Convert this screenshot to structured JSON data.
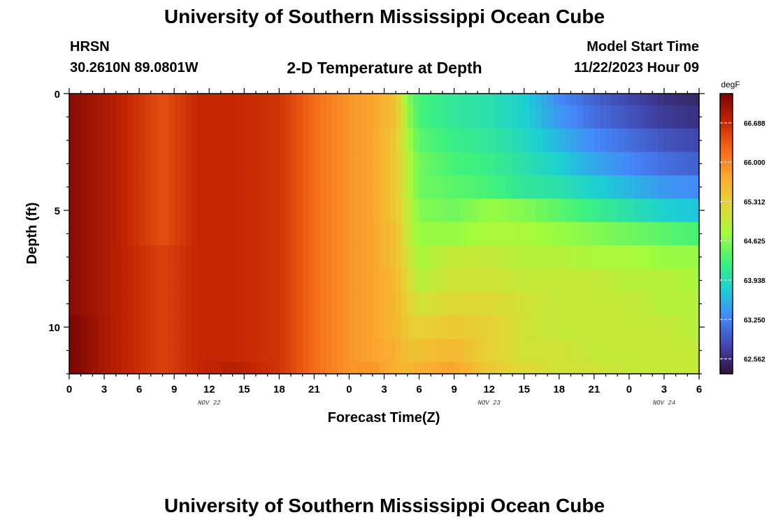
{
  "page": {
    "title": "University of Southern Mississippi Ocean Cube",
    "station": "HRSN",
    "coords": "30.2610N  89.0801W",
    "plot_title": "2-D Temperature at Depth",
    "model_label": "Model Start Time",
    "model_time": "11/22/2023 Hour 09",
    "footer_title": "University of Southern Mississippi Ocean Cube"
  },
  "chart_data": {
    "type": "heatmap",
    "title": "2-D Temperature at Depth",
    "xlabel": "Forecast Time(Z)",
    "ylabel": "Depth (ft)",
    "x_ticks": [
      "0",
      "3",
      "6",
      "9",
      "12",
      "15",
      "18",
      "21",
      "0",
      "3",
      "6",
      "9",
      "12",
      "15",
      "18",
      "21",
      "0",
      "3",
      "6"
    ],
    "x_range_hours": [
      0,
      54
    ],
    "day_labels": [
      {
        "text": "NOV 22",
        "hour": 12
      },
      {
        "text": "NOV 23",
        "hour": 36
      },
      {
        "text": "NOV 24",
        "hour": 51
      }
    ],
    "y_ticks": [
      "0",
      "5",
      "10"
    ],
    "y_range_ft": [
      0,
      12
    ],
    "colorbar": {
      "unit": "degF",
      "min": 62.3,
      "max": 67.2,
      "ticks": [
        "66.688",
        "66.000",
        "65.312",
        "64.625",
        "63.938",
        "63.250",
        "62.562"
      ],
      "colors": [
        "#30123b",
        "#4146ac",
        "#4686fb",
        "#1bcfd4",
        "#3ef17d",
        "#a2fc3c",
        "#e3d636",
        "#fbad30",
        "#f56918",
        "#c42503",
        "#7a0403"
      ]
    },
    "depth_levels_ft": [
      0,
      1,
      2,
      3,
      4,
      5,
      6,
      7,
      8,
      9,
      10,
      11,
      12
    ],
    "time_keyframes_hours": [
      0,
      4,
      8,
      11,
      14,
      18,
      21,
      24,
      26,
      28,
      29,
      30,
      33,
      36,
      39,
      42,
      45,
      48,
      51,
      54
    ],
    "temperature_degF_by_depth": [
      [
        67.1,
        66.8,
        66.4,
        66.7,
        66.7,
        66.6,
        66.2,
        65.9,
        65.8,
        65.5,
        64.6,
        64.3,
        64.1,
        64.0,
        63.8,
        63.3,
        63.0,
        62.8,
        62.6,
        62.5
      ],
      [
        67.1,
        66.8,
        66.4,
        66.7,
        66.7,
        66.6,
        66.2,
        65.9,
        65.8,
        65.5,
        64.7,
        64.3,
        64.1,
        64.0,
        63.8,
        63.4,
        63.1,
        62.9,
        62.7,
        62.6
      ],
      [
        67.1,
        66.8,
        66.4,
        66.7,
        66.7,
        66.6,
        66.2,
        65.9,
        65.8,
        65.4,
        64.8,
        64.4,
        64.2,
        64.1,
        63.9,
        63.6,
        63.3,
        63.1,
        62.9,
        62.8
      ],
      [
        67.1,
        66.8,
        66.4,
        66.7,
        66.7,
        66.6,
        66.2,
        65.9,
        65.8,
        65.4,
        64.9,
        64.5,
        64.3,
        64.2,
        64.0,
        63.8,
        63.5,
        63.3,
        63.1,
        63.0
      ],
      [
        67.1,
        66.8,
        66.4,
        66.7,
        66.7,
        66.6,
        66.2,
        65.9,
        65.8,
        65.4,
        64.9,
        64.5,
        64.4,
        64.3,
        64.1,
        64.0,
        63.8,
        63.6,
        63.4,
        63.3
      ],
      [
        67.1,
        66.8,
        66.4,
        66.7,
        66.7,
        66.6,
        66.2,
        65.9,
        65.8,
        65.4,
        65.0,
        64.6,
        64.5,
        64.7,
        64.6,
        64.4,
        64.2,
        64.0,
        63.8,
        63.7
      ],
      [
        67.1,
        66.8,
        66.4,
        66.7,
        66.7,
        66.6,
        66.2,
        65.9,
        65.8,
        65.5,
        65.0,
        64.7,
        64.7,
        64.8,
        64.8,
        64.7,
        64.6,
        64.5,
        64.4,
        64.3
      ],
      [
        67.1,
        66.8,
        66.5,
        66.7,
        66.7,
        66.6,
        66.2,
        65.9,
        65.8,
        65.5,
        65.1,
        64.8,
        65.0,
        65.0,
        64.9,
        64.9,
        64.8,
        64.8,
        64.7,
        64.7
      ],
      [
        67.1,
        66.8,
        66.5,
        66.7,
        66.7,
        66.6,
        66.2,
        65.9,
        65.8,
        65.6,
        65.2,
        64.9,
        65.1,
        65.1,
        65.0,
        65.0,
        65.0,
        64.9,
        64.9,
        64.8
      ],
      [
        67.1,
        66.8,
        66.5,
        66.7,
        66.7,
        66.6,
        66.2,
        65.9,
        65.8,
        65.6,
        65.3,
        65.1,
        65.2,
        65.2,
        65.1,
        65.0,
        65.0,
        65.0,
        64.9,
        64.9
      ],
      [
        67.2,
        66.8,
        66.5,
        66.7,
        66.7,
        66.6,
        66.2,
        65.9,
        65.8,
        65.6,
        65.4,
        65.3,
        65.4,
        65.3,
        65.1,
        65.0,
        65.0,
        65.0,
        65.0,
        64.9
      ],
      [
        67.2,
        66.8,
        66.5,
        66.7,
        66.7,
        66.6,
        66.2,
        65.9,
        65.8,
        65.7,
        65.5,
        65.5,
        65.6,
        65.3,
        65.1,
        65.1,
        65.0,
        65.0,
        65.0,
        65.0
      ],
      [
        67.2,
        66.8,
        66.5,
        66.7,
        66.8,
        66.6,
        66.2,
        65.9,
        65.9,
        65.7,
        65.6,
        65.7,
        65.8,
        65.4,
        65.2,
        65.1,
        65.1,
        65.0,
        65.0,
        65.0
      ]
    ]
  }
}
